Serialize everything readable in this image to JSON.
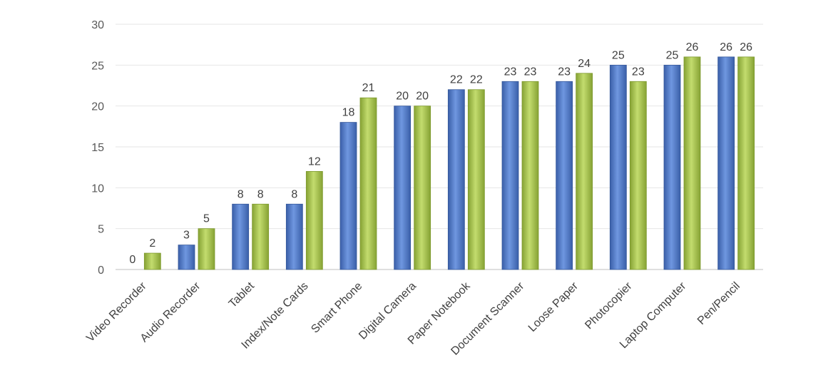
{
  "chart_data": {
    "type": "bar",
    "title": "",
    "xlabel": "",
    "ylabel": "",
    "ylim": [
      0,
      30
    ],
    "yticks": [
      0,
      5,
      10,
      15,
      20,
      25,
      30
    ],
    "grid": true,
    "legend": "none",
    "categories": [
      "Video Recorder",
      "Audio Recorder",
      "Tablet",
      "Index/Note Cards",
      "Smart Phone",
      "Digital Camera",
      "Paper Notebook",
      "Document Scanner",
      "Loose Paper",
      "Photocopier",
      "Laptop Computer",
      "Pen/Pencil"
    ],
    "series": [
      {
        "values": [
          0,
          3,
          8,
          8,
          18,
          20,
          22,
          23,
          23,
          25,
          25,
          26
        ],
        "color": "#4f79c9"
      },
      {
        "values": [
          2,
          5,
          8,
          12,
          21,
          20,
          22,
          23,
          24,
          23,
          26,
          26
        ],
        "color": "#a5c24f"
      }
    ]
  }
}
